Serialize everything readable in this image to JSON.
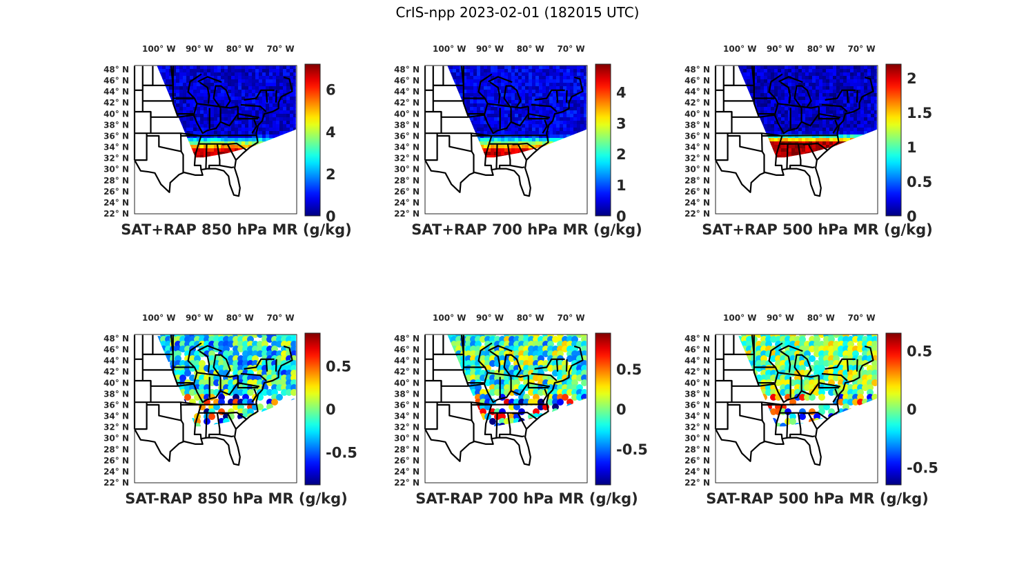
{
  "figure_title": "CrIS-npp 2023-02-01 (182015 UTC)",
  "chart_data": [
    {
      "type": "heatmap",
      "title": "SAT+RAP 850 hPa MR (g/kg)",
      "kind": "total",
      "level": "850 hPa",
      "x_ticks": [
        "100° W",
        "90° W",
        "80° W",
        "70° W"
      ],
      "y_ticks": [
        "48° N",
        "46° N",
        "44° N",
        "42° N",
        "40° N",
        "38° N",
        "36° N",
        "34° N",
        "32° N",
        "30° N",
        "28° N",
        "26° N",
        "24° N",
        "22° N"
      ],
      "colorbar": {
        "range": [
          0,
          7.2
        ],
        "ticks": [
          0,
          2,
          4,
          6
        ],
        "tick_labels": [
          "0",
          "2",
          "4",
          "6"
        ],
        "colormap": "jet"
      },
      "fields": {
        "north": 0.6,
        "south": 6.8,
        "gradient_band_lat": [
          34,
          37
        ]
      }
    },
    {
      "type": "heatmap",
      "title": "SAT+RAP 700 hPa MR (g/kg)",
      "kind": "total",
      "level": "700 hPa",
      "x_ticks": [
        "100° W",
        "90° W",
        "80° W",
        "70° W"
      ],
      "y_ticks": [
        "48° N",
        "46° N",
        "44° N",
        "42° N",
        "40° N",
        "38° N",
        "36° N",
        "34° N",
        "32° N",
        "30° N",
        "28° N",
        "26° N",
        "24° N",
        "22° N"
      ],
      "colorbar": {
        "range": [
          0,
          4.9
        ],
        "ticks": [
          0,
          1,
          2,
          3,
          4
        ],
        "tick_labels": [
          "0",
          "1",
          "2",
          "3",
          "4"
        ],
        "colormap": "jet"
      },
      "fields": {
        "north": 0.5,
        "south": 4.6,
        "gradient_band_lat": [
          34,
          37
        ]
      }
    },
    {
      "type": "heatmap",
      "title": "SAT+RAP 500 hPa MR (g/kg)",
      "kind": "total",
      "level": "500 hPa",
      "x_ticks": [
        "100° W",
        "90° W",
        "80° W",
        "70° W"
      ],
      "y_ticks": [
        "48° N",
        "46° N",
        "44° N",
        "42° N",
        "40° N",
        "38° N",
        "36° N",
        "34° N",
        "32° N",
        "30° N",
        "28° N",
        "26° N",
        "24° N",
        "22° N"
      ],
      "colorbar": {
        "range": [
          0,
          2.2
        ],
        "ticks": [
          0,
          0.5,
          1,
          1.5,
          2
        ],
        "tick_labels": [
          "0",
          "0.5",
          "1",
          "1.5",
          "2"
        ],
        "colormap": "jet"
      },
      "fields": {
        "north": 0.15,
        "south": 2.1,
        "gradient_band_lat": [
          35.5,
          37.5
        ]
      }
    },
    {
      "type": "heatmap",
      "title": "SAT-RAP 850 hPa MR (g/kg)",
      "kind": "difference",
      "level": "850 hPa",
      "x_ticks": [
        "100° W",
        "90° W",
        "80° W",
        "70° W"
      ],
      "y_ticks": [
        "48° N",
        "46° N",
        "44° N",
        "42° N",
        "40° N",
        "38° N",
        "36° N",
        "34° N",
        "32° N",
        "30° N",
        "28° N",
        "26° N",
        "24° N",
        "22° N"
      ],
      "colorbar": {
        "range": [
          -0.88,
          0.88
        ],
        "ticks": [
          -0.5,
          0,
          0.5
        ],
        "tick_labels": [
          "-0.5",
          "0",
          "0.5"
        ],
        "colormap": "jet"
      },
      "fields": {
        "mean": -0.2,
        "spread": 0.4
      }
    },
    {
      "type": "heatmap",
      "title": "SAT-RAP 700 hPa MR (g/kg)",
      "kind": "difference",
      "level": "700 hPa",
      "x_ticks": [
        "100° W",
        "90° W",
        "80° W",
        "70° W"
      ],
      "y_ticks": [
        "48° N",
        "46° N",
        "44° N",
        "42° N",
        "40° N",
        "38° N",
        "36° N",
        "34° N",
        "32° N",
        "30° N",
        "28° N",
        "26° N",
        "24° N",
        "22° N"
      ],
      "colorbar": {
        "range": [
          -0.95,
          0.95
        ],
        "ticks": [
          -0.5,
          0,
          0.5
        ],
        "tick_labels": [
          "-0.5",
          "0",
          "0.5"
        ],
        "colormap": "jet"
      },
      "fields": {
        "mean": -0.1,
        "spread": 0.45
      }
    },
    {
      "type": "heatmap",
      "title": "SAT-RAP 500 hPa MR (g/kg)",
      "kind": "difference",
      "level": "500 hPa",
      "x_ticks": [
        "100° W",
        "90° W",
        "80° W",
        "70° W"
      ],
      "y_ticks": [
        "48° N",
        "46° N",
        "44° N",
        "42° N",
        "40° N",
        "38° N",
        "36° N",
        "34° N",
        "32° N",
        "30° N",
        "28° N",
        "26° N",
        "24° N",
        "22° N"
      ],
      "colorbar": {
        "range": [
          -0.65,
          0.65
        ],
        "ticks": [
          -0.5,
          0,
          0.5
        ],
        "tick_labels": [
          "-0.5",
          "0",
          "0.5"
        ],
        "colormap": "jet"
      },
      "fields": {
        "mean": 0.0,
        "spread": 0.25
      }
    }
  ]
}
